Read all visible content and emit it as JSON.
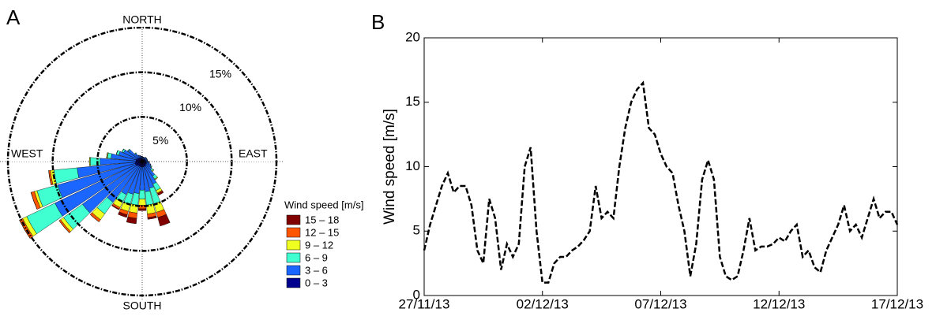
{
  "chart_data": [
    {
      "type": "windrose",
      "title": "A",
      "direction_labels": {
        "north": "NORTH",
        "east": "EAST",
        "south": "SOUTH",
        "west": "WEST"
      },
      "legend_title": "Wind speed [m/s]",
      "x": [
        0,
        10,
        20,
        30,
        40,
        50,
        60,
        70,
        80,
        90,
        100,
        110,
        120,
        130,
        140,
        150,
        160,
        170,
        180,
        190,
        200,
        210,
        220,
        230,
        240,
        250,
        260,
        270,
        280,
        290,
        300,
        310,
        320,
        330,
        340,
        350
      ],
      "rlim": [
        0,
        15
      ],
      "rticks": [
        {
          "value": 5,
          "label": "5%"
        },
        {
          "value": 10,
          "label": "10%"
        },
        {
          "value": 15,
          "label": "15%"
        }
      ],
      "series": [
        {
          "name": "15 – 18",
          "color": "#800000",
          "values": [
            0,
            0,
            0,
            0,
            0,
            0,
            0,
            0,
            0,
            0,
            0,
            0,
            0,
            0,
            0,
            0.2,
            1,
            0.2,
            0.2,
            0.6,
            0.3,
            0.1,
            0,
            0,
            0,
            0,
            0,
            0,
            0,
            0,
            0,
            0,
            0,
            0,
            0,
            0
          ]
        },
        {
          "name": "12 – 15",
          "color": "#ff5500",
          "values": [
            0,
            0,
            0,
            0,
            0,
            0,
            0,
            0,
            0,
            0,
            0,
            0,
            0,
            0,
            0,
            0.1,
            0.6,
            0.4,
            0.4,
            0.6,
            0.4,
            0.2,
            0.3,
            0.2,
            0.4,
            0.4,
            0.2,
            0,
            0,
            0,
            0,
            0,
            0,
            0,
            0,
            0
          ]
        },
        {
          "name": "9 – 12",
          "color": "#f0ff20",
          "values": [
            0,
            0,
            0,
            0,
            0,
            0,
            0,
            0,
            0,
            0,
            0,
            0,
            0,
            0.1,
            0.1,
            0.3,
            1,
            1,
            0.7,
            0.9,
            0.8,
            0.6,
            0.8,
            0.4,
            0.5,
            0.3,
            0.4,
            0.1,
            0.1,
            0,
            0,
            0,
            0,
            0,
            0,
            0
          ]
        },
        {
          "name": "6 – 9",
          "color": "#40ffd0",
          "values": [
            0,
            0,
            0,
            0,
            0,
            0,
            0,
            0,
            0,
            0,
            0,
            0,
            0.1,
            0.2,
            0.4,
            0.8,
            1.8,
            1.5,
            1,
            1.3,
            1.2,
            1,
            1.6,
            2.6,
            3.5,
            2.4,
            2.6,
            1.1,
            0.4,
            0.3,
            0.2,
            0.1,
            0.1,
            0,
            0,
            0
          ]
        },
        {
          "name": "3 – 6",
          "color": "#1a66ff",
          "values": [
            0.2,
            0.2,
            0.2,
            0.2,
            0.2,
            0.2,
            0.2,
            0.2,
            0.2,
            0.3,
            0.3,
            0.5,
            0.6,
            0.8,
            1.4,
            2.2,
            2.5,
            2.8,
            2.6,
            3,
            3.2,
            3.5,
            5,
            7.5,
            10,
            9,
            6.5,
            4,
            2.8,
            2,
            1.7,
            1.3,
            0.6,
            0.3,
            0.3,
            0.2
          ]
        },
        {
          "name": "0 – 3",
          "color": "#00008f",
          "values": [
            0.4,
            0.3,
            0.3,
            0.3,
            0.4,
            0.4,
            0.4,
            0.4,
            0.4,
            0.4,
            0.5,
            0.5,
            0.5,
            0.5,
            0.6,
            0.6,
            0.6,
            0.6,
            0.6,
            0.6,
            0.6,
            0.6,
            0.6,
            0.7,
            0.8,
            0.8,
            0.8,
            0.7,
            0.7,
            0.7,
            0.6,
            0.6,
            0.5,
            0.5,
            0.4,
            0.4
          ]
        }
      ]
    },
    {
      "type": "line",
      "title": "B",
      "y_label": "Wind speed [m/s]",
      "color": "#000000",
      "x": [
        0,
        0.25,
        0.5,
        0.75,
        1,
        1.25,
        1.5,
        1.75,
        2,
        2.25,
        2.5,
        2.75,
        3,
        3.25,
        3.5,
        3.75,
        4,
        4.25,
        4.5,
        4.75,
        5,
        5.25,
        5.5,
        5.75,
        6,
        6.25,
        6.5,
        6.75,
        7,
        7.25,
        7.5,
        7.75,
        8,
        8.25,
        8.5,
        8.75,
        9,
        9.25,
        9.5,
        9.75,
        10,
        10.25,
        10.5,
        10.75,
        11,
        11.25,
        11.5,
        11.75,
        12,
        12.25,
        12.5,
        12.75,
        13,
        13.25,
        13.5,
        13.75,
        14,
        14.25,
        14.5,
        14.75,
        15,
        15.25,
        15.5,
        15.75,
        16,
        16.25,
        16.5,
        16.75,
        17,
        17.25,
        17.5,
        17.75,
        18,
        18.25,
        18.5,
        18.75,
        19,
        19.25,
        19.5,
        19.75,
        20
      ],
      "values": [
        3.5,
        5.5,
        7,
        8.5,
        9.5,
        8,
        8.5,
        8.5,
        7,
        3.5,
        2.5,
        7.5,
        6,
        2,
        4,
        3,
        4,
        10,
        11.5,
        5,
        1,
        1,
        2.5,
        3,
        3,
        3.5,
        3.8,
        4.3,
        5,
        8.5,
        6,
        6.5,
        6,
        10,
        13,
        15,
        16,
        16.5,
        13,
        12.5,
        11,
        10,
        9.5,
        7,
        5,
        1.5,
        4,
        9,
        10.5,
        9,
        3,
        1.5,
        1.2,
        1.5,
        3.5,
        6,
        3.5,
        3.8,
        3.8,
        4,
        4.5,
        4.2,
        5,
        5.5,
        3,
        3.5,
        2.2,
        1.8,
        3.5,
        4.5,
        5.5,
        7,
        5,
        5.5,
        4.5,
        6,
        7.5,
        6,
        6.5,
        6.5,
        5.5
      ],
      "xlim": [
        0,
        20
      ],
      "xticks": [
        {
          "value": 0,
          "label": "27/11/13"
        },
        {
          "value": 5,
          "label": "02/12/13"
        },
        {
          "value": 10,
          "label": "07/12/13"
        },
        {
          "value": 15,
          "label": "12/12/13"
        },
        {
          "value": 20,
          "label": "17/12/13"
        }
      ],
      "ylim": [
        0,
        20
      ],
      "yticks": [
        0,
        5,
        10,
        15,
        20
      ]
    }
  ]
}
